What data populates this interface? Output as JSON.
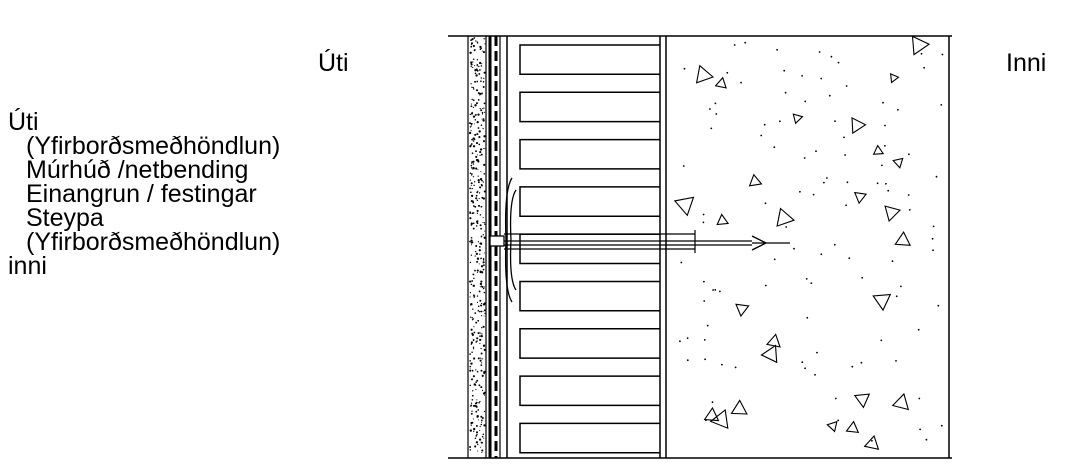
{
  "labels": {
    "outside": "Úti",
    "inside": "Inni"
  },
  "legend": {
    "items": [
      {
        "text": "Úti",
        "indent": false
      },
      {
        "text": "(Yfirborðsmeðhöndlun)",
        "indent": true
      },
      {
        "text": "Múrhúð /netbending",
        "indent": true
      },
      {
        "text": "Einangrun / festingar",
        "indent": true
      },
      {
        "text": "Steypa",
        "indent": true
      },
      {
        "text": "(Yfirborðsmeðhöndlun)",
        "indent": true
      },
      {
        "text": "inni",
        "indent": false
      }
    ]
  },
  "colors": {
    "line": "#000000",
    "background": "#ffffff"
  }
}
